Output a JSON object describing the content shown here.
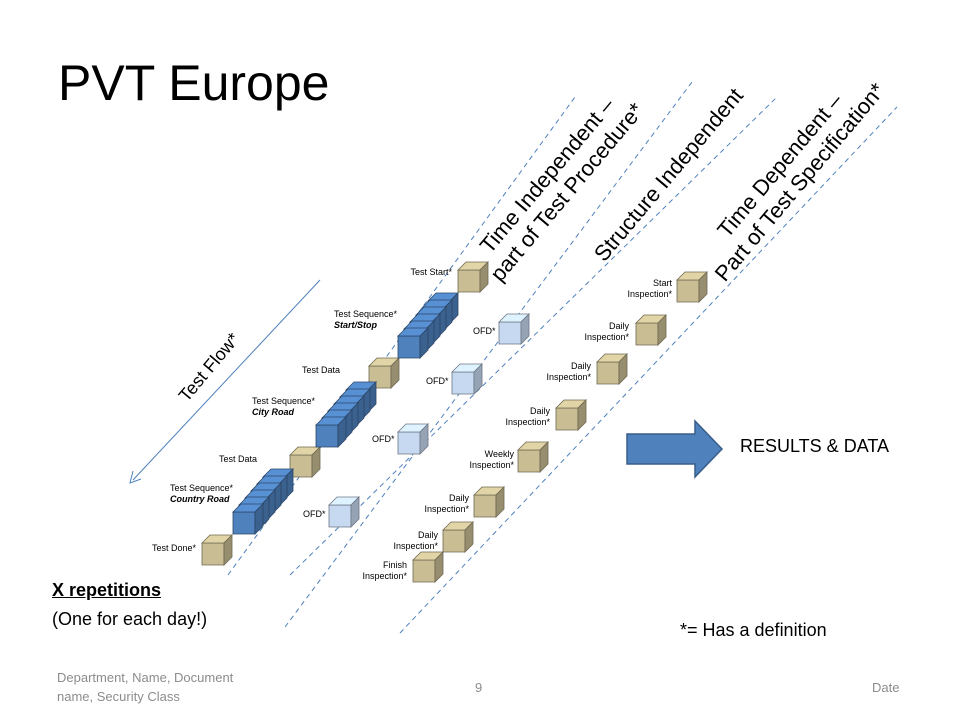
{
  "title": "PVT Europe",
  "lanes": {
    "time_independent_1": "Time Independent –",
    "time_independent_2": "part of Test Procedure*",
    "structure_independent": "Structure Independent",
    "time_dependent_1": "Time Dependent –",
    "time_dependent_2": "Part of Test Specification*"
  },
  "test_flow": "Test Flow*",
  "flow_items": {
    "test_start": "Test Start*",
    "seq1_label": "Test Sequence*",
    "seq1_name": "Start/Stop",
    "test_data_1": "Test Data",
    "seq2_label": "Test Sequence*",
    "seq2_name": "City Road",
    "test_data_2": "Test Data",
    "seq3_label": "Test Sequence*",
    "seq3_name": "Country Road",
    "test_done": "Test Done*"
  },
  "ofd": [
    "OFD*",
    "OFD*",
    "OFD*",
    "OFD*"
  ],
  "inspections": [
    [
      "Start",
      "Inspection*"
    ],
    [
      "Daily",
      "Inspection*"
    ],
    [
      "Daily",
      "Inspection*"
    ],
    [
      "Daily",
      "Inspection*"
    ],
    [
      "Weekly",
      "Inspection*"
    ],
    [
      "Daily",
      "Inspection*"
    ],
    [
      "Daily",
      "Inspection*"
    ],
    [
      "Finish",
      "Inspection*"
    ]
  ],
  "repetitions": "X repetitions",
  "repetitions_note": "(One for each day!)",
  "results": "RESULTS & DATA",
  "definition_note": "*= Has a definition",
  "footer": {
    "left_line1": "Department,  Name, Document",
    "left_line2": "name, Security Class",
    "page": "9",
    "date": "Date"
  },
  "colors": {
    "tan_box": "#c9bd94",
    "blue_box": "#4f81bd",
    "light_blue_box": "#c6d9f1",
    "dashed_line": "#4f81bd",
    "arrow": "#4f81bd"
  }
}
